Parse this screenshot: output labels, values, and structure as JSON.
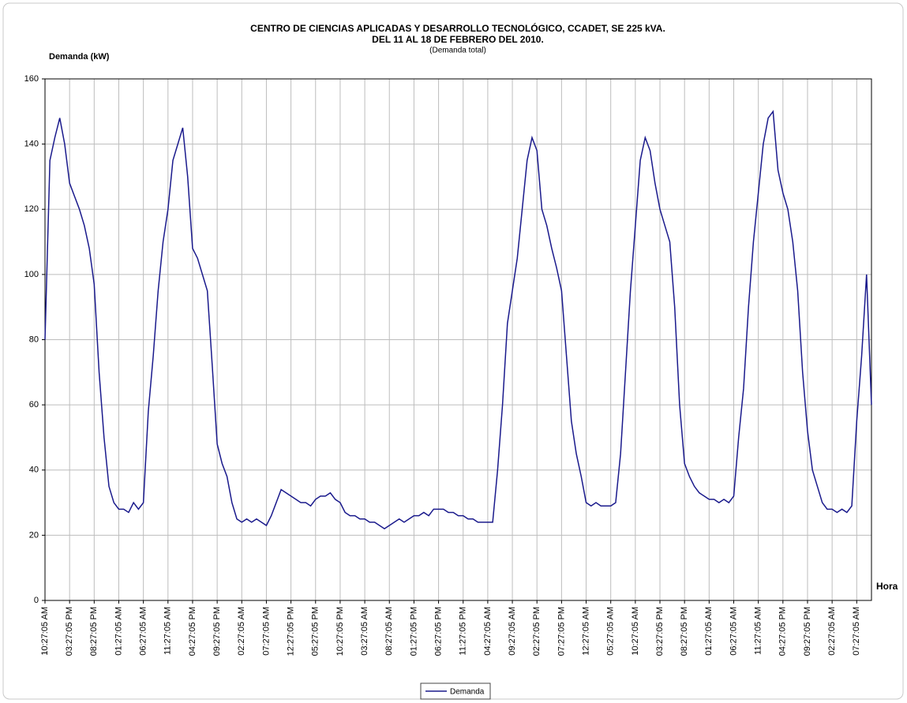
{
  "chart_data": {
    "type": "line",
    "title": "CENTRO DE CIENCIAS APLICADAS Y DESARROLLO TECNOLÓGICO, CCADET, SE 225 kVA.",
    "subtitle": "DEL 11 AL 18 DE FEBRERO DEL 2010.",
    "note": "(Demanda total)",
    "y_label": "Demanda (kW)",
    "x_label": "Hora",
    "categories": [
      "10:27:05 AM",
      null,
      null,
      null,
      null,
      "03:27:05 PM",
      null,
      null,
      null,
      null,
      "08:27:05 PM",
      null,
      null,
      null,
      null,
      "01:27:05 AM",
      null,
      null,
      null,
      null,
      "06:27:05 AM",
      null,
      null,
      null,
      null,
      "11:27:05 AM",
      null,
      null,
      null,
      null,
      "04:27:05 PM",
      null,
      null,
      null,
      null,
      "09:27:05 PM",
      null,
      null,
      null,
      null,
      "02:27:05 AM",
      null,
      null,
      null,
      null,
      "07:27:05 AM",
      null,
      null,
      null,
      null,
      "12:27:05 PM",
      null,
      null,
      null,
      null,
      "05:27:05 PM",
      null,
      null,
      null,
      null,
      "10:27:05 PM",
      null,
      null,
      null,
      null,
      "03:27:05 AM",
      null,
      null,
      null,
      null,
      "08:27:05 AM",
      null,
      null,
      null,
      null,
      "01:27:05 PM",
      null,
      null,
      null,
      null,
      "06:27:05 PM",
      null,
      null,
      null,
      null,
      "11:27:05 PM",
      null,
      null,
      null,
      null,
      "04:27:05 AM",
      null,
      null,
      null,
      null,
      "09:27:05 AM",
      null,
      null,
      null,
      null,
      "02:27:05 PM",
      null,
      null,
      null,
      null,
      "07:27:05 PM",
      null,
      null,
      null,
      null,
      "12:27:05 AM",
      null,
      null,
      null,
      null,
      "05:27:05 AM",
      null,
      null,
      null,
      null,
      "10:27:05 AM",
      null,
      null,
      null,
      null,
      "03:27:05 PM",
      null,
      null,
      null,
      null,
      "08:27:05 PM",
      null,
      null,
      null,
      null,
      "01:27:05 AM",
      null,
      null,
      null,
      null,
      "06:27:05 AM",
      null,
      null,
      null,
      null,
      "11:27:05 AM",
      null,
      null,
      null,
      null,
      "04:27:05 PM",
      null,
      null,
      null,
      null,
      "09:27:05 PM",
      null,
      null,
      null,
      null,
      "02:27:05 AM",
      null,
      null,
      null,
      null,
      "07:27:05 AM",
      null,
      null,
      null
    ],
    "series": [
      {
        "name": "Demanda",
        "color": "#1a1a8c",
        "values": [
          80,
          135,
          142,
          148,
          140,
          128,
          124,
          120,
          115,
          108,
          97,
          70,
          50,
          35,
          30,
          28,
          28,
          27,
          30,
          28,
          30,
          58,
          75,
          95,
          110,
          120,
          135,
          140,
          145,
          130,
          108,
          105,
          100,
          95,
          72,
          48,
          42,
          38,
          30,
          25,
          24,
          25,
          24,
          25,
          24,
          23,
          26,
          30,
          34,
          33,
          32,
          31,
          30,
          30,
          29,
          31,
          32,
          32,
          33,
          31,
          30,
          27,
          26,
          26,
          25,
          25,
          24,
          24,
          23,
          22,
          23,
          24,
          25,
          24,
          25,
          26,
          26,
          27,
          26,
          28,
          28,
          28,
          27,
          27,
          26,
          26,
          25,
          25,
          24,
          24,
          24,
          24,
          40,
          60,
          85,
          95,
          105,
          120,
          135,
          142,
          138,
          120,
          115,
          108,
          102,
          95,
          75,
          55,
          45,
          38,
          30,
          29,
          30,
          29,
          29,
          29,
          30,
          45,
          70,
          95,
          115,
          135,
          142,
          138,
          128,
          120,
          115,
          110,
          90,
          60,
          42,
          38,
          35,
          33,
          32,
          31,
          31,
          30,
          31,
          30,
          32,
          50,
          65,
          90,
          110,
          125,
          140,
          148,
          150,
          132,
          125,
          120,
          110,
          95,
          70,
          52,
          40,
          35,
          30,
          28,
          28,
          27,
          28,
          27,
          29,
          55,
          75,
          100,
          60
        ]
      }
    ],
    "ylim": [
      0,
      160
    ],
    "yticks": [
      0,
      20,
      40,
      60,
      80,
      100,
      120,
      140,
      160
    ],
    "grid": true,
    "legend": "bottom"
  }
}
